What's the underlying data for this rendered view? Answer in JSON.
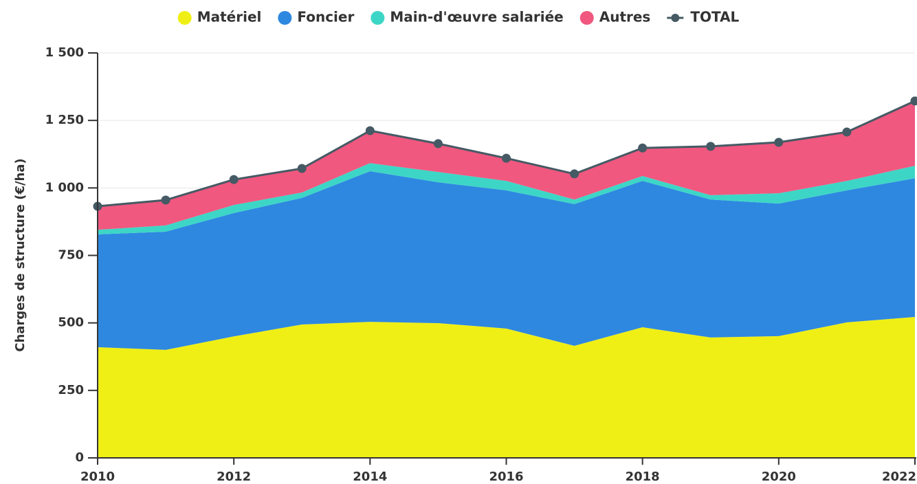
{
  "chart_data": {
    "type": "stacked_area",
    "y_label": "Charges de structure (€/ha)",
    "x": [
      2010,
      2011,
      2012,
      2013,
      2014,
      2015,
      2016,
      2017,
      2018,
      2019,
      2020,
      2021,
      2022
    ],
    "xlim": [
      2010,
      2022
    ],
    "xticks": [
      2010,
      2012,
      2014,
      2016,
      2018,
      2020,
      2022
    ],
    "ylim": [
      0,
      1500
    ],
    "yticks": [
      0,
      250,
      500,
      750,
      {
        "value": 1000,
        "label": "1 000"
      },
      {
        "value": 1250,
        "label": "1 250"
      },
      {
        "value": 1500,
        "label": "1 500"
      }
    ],
    "grid": true,
    "legend": "top",
    "series": [
      {
        "name": "Matériel",
        "color": "#efef16",
        "values": [
          410,
          400,
          450,
          494,
          504,
          499,
          479,
          415,
          484,
          446,
          451,
          502,
          522
        ]
      },
      {
        "name": "Foncier",
        "color": "#2e88e0",
        "values": [
          418,
          438,
          457,
          469,
          558,
          522,
          512,
          525,
          542,
          511,
          491,
          489,
          514
        ]
      },
      {
        "name": "Main-d'œuvre salariée",
        "color": "#3dd6c6",
        "values": [
          17,
          23,
          30,
          20,
          30,
          38,
          35,
          17,
          18,
          16,
          38,
          35,
          46
        ]
      },
      {
        "name": "Autres",
        "color": "#f0587f",
        "values": [
          87,
          94,
          94,
          89,
          120,
          105,
          84,
          95,
          104,
          181,
          189,
          181,
          240
        ]
      }
    ],
    "total": {
      "name": "TOTAL",
      "color": "#455a64",
      "values": [
        932,
        955,
        1031,
        1072,
        1212,
        1164,
        1110,
        1052,
        1148,
        1154,
        1169,
        1207,
        1322
      ]
    }
  }
}
